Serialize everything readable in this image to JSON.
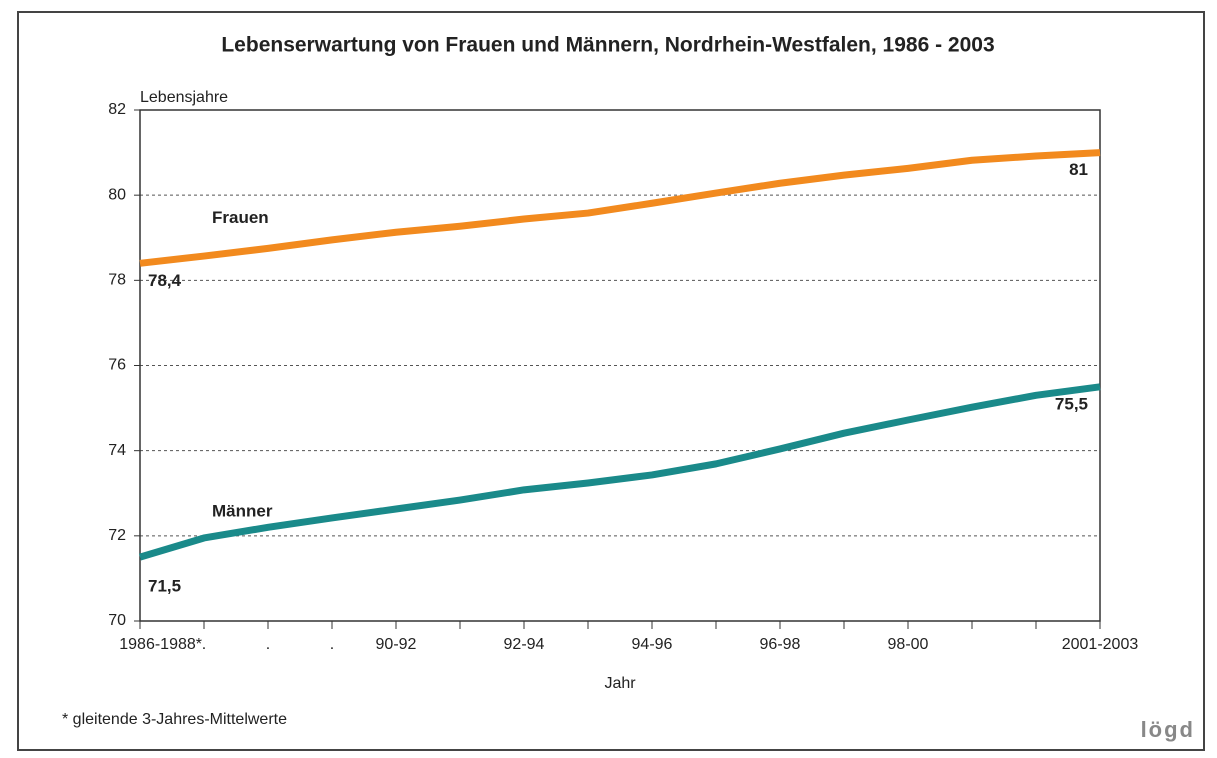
{
  "chart_data": {
    "type": "line",
    "title": "Lebenserwartung von Frauen und Männern, Nordrhein-Westfalen, 1986 - 2003",
    "y_label": "Lebensjahre",
    "x_label": "Jahr",
    "footnote": "* gleitende 3-Jahres-Mittelwerte",
    "source": "lögd",
    "categories": [
      "1986-1988*",
      ".",
      ".",
      ".",
      "90-92",
      null,
      "92-94",
      null,
      "94-96",
      null,
      "96-98",
      null,
      "98-00",
      null,
      null,
      "2001-2003"
    ],
    "series": [
      {
        "name": "Frauen",
        "color": "#f28a1e",
        "values": [
          78.4,
          78.57,
          78.75,
          78.95,
          79.13,
          79.27,
          79.44,
          79.58,
          79.81,
          80.05,
          80.28,
          80.47,
          80.63,
          80.82,
          80.92,
          81
        ],
        "value_labels": [
          "78,4",
          null,
          null,
          null,
          null,
          null,
          null,
          null,
          null,
          null,
          null,
          null,
          null,
          null,
          null,
          "81"
        ]
      },
      {
        "name": "Männer",
        "color": "#1a8a8a",
        "values": [
          71.5,
          71.95,
          72.2,
          72.42,
          72.63,
          72.84,
          73.08,
          73.24,
          73.43,
          73.69,
          74.04,
          74.41,
          74.72,
          75.02,
          75.3,
          75.5
        ],
        "value_labels": [
          "71,5",
          null,
          null,
          null,
          null,
          null,
          null,
          null,
          null,
          null,
          null,
          null,
          null,
          null,
          null,
          "75,5"
        ]
      }
    ],
    "ylim": [
      70,
      82
    ],
    "yticks": [
      70,
      72,
      74,
      76,
      78,
      80,
      82
    ],
    "grid": true
  }
}
